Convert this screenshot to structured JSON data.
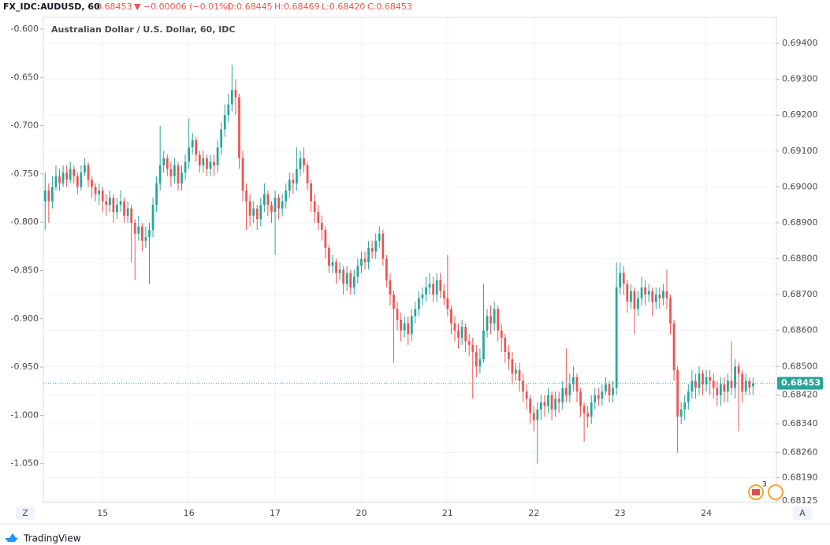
{
  "header": {
    "symbol": "FX_IDC:AUDUSD, 60",
    "price": "0.68453",
    "change": "▼ −0.00006 (−0.01%)",
    "open": "O:0.68445",
    "high": "H:0.68469",
    "low": "L:0.68420",
    "close": "C:0.68453"
  },
  "chart_data": {
    "type": "candlestick",
    "title": "Australian Dollar / U.S. Dollar, 60, IDC",
    "up_color": "#26a69a",
    "down_color": "#ef5350",
    "grid": true,
    "xlim": [
      -0.5,
      203.5
    ],
    "xticks": [
      {
        "value": 16,
        "label": "15"
      },
      {
        "value": 40,
        "label": "16"
      },
      {
        "value": 64,
        "label": "17"
      },
      {
        "value": 88,
        "label": "20"
      },
      {
        "value": 112,
        "label": "21"
      },
      {
        "value": 136,
        "label": "22"
      },
      {
        "value": 160,
        "label": "23"
      },
      {
        "value": 184,
        "label": "24"
      }
    ],
    "ylim": [
      -1.0902,
      -0.5878
    ],
    "yticks": [
      {
        "value": -0.6,
        "label": "-0.600"
      },
      {
        "value": -0.65,
        "label": "-0.650"
      },
      {
        "value": -0.7,
        "label": "-0.700"
      },
      {
        "value": -0.75,
        "label": "-0.750"
      },
      {
        "value": -0.8,
        "label": "-0.800"
      },
      {
        "value": -0.85,
        "label": "-0.850"
      },
      {
        "value": -0.9,
        "label": "-0.900"
      },
      {
        "value": -0.95,
        "label": "-0.950"
      },
      {
        "value": -1.0,
        "label": "-1.000"
      },
      {
        "value": -1.05,
        "label": "-1.050"
      }
    ],
    "y2lim": [
      0.68121,
      0.694725
    ],
    "y2ticks": [
      {
        "value": 0.694,
        "label": "0.69400"
      },
      {
        "value": 0.693,
        "label": "0.69300"
      },
      {
        "value": 0.692,
        "label": "0.69200"
      },
      {
        "value": 0.691,
        "label": "0.69100"
      },
      {
        "value": 0.69,
        "label": "0.69000"
      },
      {
        "value": 0.689,
        "label": "0.68900"
      },
      {
        "value": 0.688,
        "label": "0.68800"
      },
      {
        "value": 0.687,
        "label": "0.68700"
      },
      {
        "value": 0.686,
        "label": "0.68600"
      },
      {
        "value": 0.685,
        "label": "0.68500"
      },
      {
        "value": 0.6842,
        "label": "0.68420"
      },
      {
        "value": 0.6834,
        "label": "0.68340"
      },
      {
        "value": 0.6826,
        "label": "0.68260"
      },
      {
        "value": 0.6819,
        "label": "0.68190"
      },
      {
        "value": 0.68125,
        "label": "0.68125"
      }
    ],
    "last_price": {
      "value": 0.68453,
      "label": "0.68453"
    },
    "axis_buttons": [
      "Z",
      "A"
    ],
    "events_badge": "3",
    "brand": "TradingView",
    "candles": [
      [
        0.6896,
        0.6904,
        0.6888,
        0.6899
      ],
      [
        0.6899,
        0.6901,
        0.689,
        0.6896
      ],
      [
        0.6896,
        0.6903,
        0.6894,
        0.69
      ],
      [
        0.69,
        0.6906,
        0.6899,
        0.6903
      ],
      [
        0.6903,
        0.6905,
        0.6899,
        0.6901
      ],
      [
        0.6901,
        0.6906,
        0.69,
        0.6904
      ],
      [
        0.6904,
        0.6906,
        0.69,
        0.6902
      ],
      [
        0.6902,
        0.6907,
        0.6901,
        0.6905
      ],
      [
        0.6905,
        0.6906,
        0.6901,
        0.6903
      ],
      [
        0.6903,
        0.6904,
        0.6898,
        0.69
      ],
      [
        0.69,
        0.6906,
        0.6899,
        0.6904
      ],
      [
        0.6904,
        0.6908,
        0.6903,
        0.6906
      ],
      [
        0.6906,
        0.6907,
        0.69,
        0.6902
      ],
      [
        0.6902,
        0.6903,
        0.6897,
        0.69
      ],
      [
        0.69,
        0.6901,
        0.6896,
        0.6898
      ],
      [
        0.6898,
        0.6901,
        0.6895,
        0.6899
      ],
      [
        0.6899,
        0.69,
        0.6893,
        0.6896
      ],
      [
        0.6896,
        0.6898,
        0.6892,
        0.6895
      ],
      [
        0.6895,
        0.6899,
        0.6893,
        0.6897
      ],
      [
        0.6897,
        0.6898,
        0.689,
        0.6893
      ],
      [
        0.6893,
        0.6897,
        0.6891,
        0.6895
      ],
      [
        0.6895,
        0.6899,
        0.6893,
        0.6896
      ],
      [
        0.6896,
        0.6897,
        0.689,
        0.6892
      ],
      [
        0.6892,
        0.6896,
        0.689,
        0.6894
      ],
      [
        0.6894,
        0.6895,
        0.6879,
        0.689
      ],
      [
        0.689,
        0.6891,
        0.6874,
        0.6887
      ],
      [
        0.6887,
        0.6892,
        0.6885,
        0.6889
      ],
      [
        0.6889,
        0.689,
        0.6882,
        0.6885
      ],
      [
        0.6885,
        0.6889,
        0.6883,
        0.6886
      ],
      [
        0.6886,
        0.689,
        0.6873,
        0.6888
      ],
      [
        0.6888,
        0.6897,
        0.6886,
        0.6895
      ],
      [
        0.6895,
        0.6903,
        0.6893,
        0.6901
      ],
      [
        0.6901,
        0.6917,
        0.6899,
        0.6906
      ],
      [
        0.6906,
        0.691,
        0.6904,
        0.6908
      ],
      [
        0.6908,
        0.6909,
        0.6903,
        0.6905
      ],
      [
        0.6905,
        0.6907,
        0.69,
        0.6903
      ],
      [
        0.6903,
        0.6908,
        0.6901,
        0.6906
      ],
      [
        0.6906,
        0.6907,
        0.6899,
        0.6901
      ],
      [
        0.6901,
        0.6906,
        0.6899,
        0.6904
      ],
      [
        0.6904,
        0.6909,
        0.6902,
        0.6907
      ],
      [
        0.6907,
        0.6919,
        0.6905,
        0.6911
      ],
      [
        0.6911,
        0.6915,
        0.6909,
        0.6913
      ],
      [
        0.6913,
        0.6914,
        0.6907,
        0.6909
      ],
      [
        0.6909,
        0.691,
        0.6904,
        0.6906
      ],
      [
        0.6906,
        0.691,
        0.6904,
        0.6908
      ],
      [
        0.6908,
        0.6909,
        0.6903,
        0.6905
      ],
      [
        0.6905,
        0.6909,
        0.6903,
        0.6907
      ],
      [
        0.6907,
        0.6909,
        0.6903,
        0.6906
      ],
      [
        0.6906,
        0.6913,
        0.6904,
        0.6911
      ],
      [
        0.6911,
        0.6918,
        0.6909,
        0.6916
      ],
      [
        0.6916,
        0.6923,
        0.6914,
        0.692
      ],
      [
        0.692,
        0.6926,
        0.6918,
        0.6923
      ],
      [
        0.6923,
        0.6934,
        0.6921,
        0.6927
      ],
      [
        0.6927,
        0.693,
        0.692,
        0.6925
      ],
      [
        0.6925,
        0.6926,
        0.6905,
        0.6908
      ],
      [
        0.6908,
        0.691,
        0.6896,
        0.6899
      ],
      [
        0.6899,
        0.6901,
        0.6888,
        0.6896
      ],
      [
        0.6896,
        0.6898,
        0.6889,
        0.6892
      ],
      [
        0.6892,
        0.6896,
        0.689,
        0.6894
      ],
      [
        0.6894,
        0.6895,
        0.6888,
        0.6891
      ],
      [
        0.6891,
        0.6897,
        0.6889,
        0.6895
      ],
      [
        0.6895,
        0.6901,
        0.6893,
        0.6898
      ],
      [
        0.6898,
        0.6899,
        0.6892,
        0.6895
      ],
      [
        0.6895,
        0.6896,
        0.689,
        0.6893
      ],
      [
        0.6893,
        0.6899,
        0.6881,
        0.6897
      ],
      [
        0.6897,
        0.6898,
        0.6891,
        0.6894
      ],
      [
        0.6894,
        0.6898,
        0.6892,
        0.6896
      ],
      [
        0.6896,
        0.6901,
        0.6894,
        0.6899
      ],
      [
        0.6899,
        0.6904,
        0.6897,
        0.6902
      ],
      [
        0.6902,
        0.6904,
        0.6898,
        0.6901
      ],
      [
        0.6901,
        0.6911,
        0.6899,
        0.6905
      ],
      [
        0.6905,
        0.691,
        0.6903,
        0.6908
      ],
      [
        0.6908,
        0.6911,
        0.6904,
        0.6906
      ],
      [
        0.6906,
        0.6907,
        0.6899,
        0.6901
      ],
      [
        0.6901,
        0.6902,
        0.6893,
        0.6896
      ],
      [
        0.6896,
        0.6898,
        0.689,
        0.6893
      ],
      [
        0.6893,
        0.6895,
        0.6888,
        0.689
      ],
      [
        0.689,
        0.6892,
        0.6885,
        0.6888
      ],
      [
        0.6888,
        0.6889,
        0.688,
        0.6883
      ],
      [
        0.6883,
        0.6884,
        0.6876,
        0.6878
      ],
      [
        0.6878,
        0.6881,
        0.6876,
        0.6879
      ],
      [
        0.6879,
        0.688,
        0.6873,
        0.6876
      ],
      [
        0.6876,
        0.6879,
        0.6874,
        0.6877
      ],
      [
        0.6877,
        0.6878,
        0.687,
        0.6873
      ],
      [
        0.6873,
        0.6878,
        0.6871,
        0.6876
      ],
      [
        0.6876,
        0.6877,
        0.687,
        0.6872
      ],
      [
        0.6872,
        0.6877,
        0.687,
        0.6875
      ],
      [
        0.6875,
        0.688,
        0.6873,
        0.6878
      ],
      [
        0.6878,
        0.6882,
        0.6876,
        0.688
      ],
      [
        0.688,
        0.6882,
        0.6877,
        0.6879
      ],
      [
        0.6879,
        0.6885,
        0.6877,
        0.6883
      ],
      [
        0.6883,
        0.6885,
        0.688,
        0.6882
      ],
      [
        0.6882,
        0.6887,
        0.688,
        0.6885
      ],
      [
        0.6885,
        0.6889,
        0.6883,
        0.6887
      ],
      [
        0.6887,
        0.6888,
        0.6878,
        0.688
      ],
      [
        0.688,
        0.6881,
        0.6872,
        0.6874
      ],
      [
        0.6874,
        0.6876,
        0.6867,
        0.687
      ],
      [
        0.687,
        0.6871,
        0.6851,
        0.6866
      ],
      [
        0.6866,
        0.6868,
        0.686,
        0.6863
      ],
      [
        0.6863,
        0.6865,
        0.6857,
        0.686
      ],
      [
        0.686,
        0.6864,
        0.6858,
        0.6862
      ],
      [
        0.6862,
        0.6864,
        0.6856,
        0.6859
      ],
      [
        0.6859,
        0.6866,
        0.6857,
        0.6864
      ],
      [
        0.6864,
        0.6868,
        0.6862,
        0.6866
      ],
      [
        0.6866,
        0.6871,
        0.6864,
        0.6869
      ],
      [
        0.6869,
        0.6872,
        0.6867,
        0.687
      ],
      [
        0.687,
        0.6875,
        0.6868,
        0.6872
      ],
      [
        0.6872,
        0.6876,
        0.687,
        0.6873
      ],
      [
        0.6873,
        0.6875,
        0.6868,
        0.687
      ],
      [
        0.687,
        0.6876,
        0.6868,
        0.6874
      ],
      [
        0.6874,
        0.6876,
        0.6869,
        0.6871
      ],
      [
        0.6871,
        0.6873,
        0.6867,
        0.6869
      ],
      [
        0.6869,
        0.6881,
        0.6864,
        0.6866
      ],
      [
        0.6866,
        0.6867,
        0.6859,
        0.6862
      ],
      [
        0.6862,
        0.6864,
        0.6857,
        0.686
      ],
      [
        0.686,
        0.6862,
        0.6855,
        0.6858
      ],
      [
        0.6858,
        0.6863,
        0.6856,
        0.6861
      ],
      [
        0.6861,
        0.6862,
        0.6854,
        0.6857
      ],
      [
        0.6857,
        0.6859,
        0.6853,
        0.6856
      ],
      [
        0.6856,
        0.6858,
        0.6841,
        0.6854
      ],
      [
        0.6854,
        0.6856,
        0.6847,
        0.685
      ],
      [
        0.685,
        0.6855,
        0.6848,
        0.6852
      ],
      [
        0.6852,
        0.6873,
        0.6851,
        0.686
      ],
      [
        0.686,
        0.6866,
        0.6858,
        0.6864
      ],
      [
        0.6864,
        0.6867,
        0.6859,
        0.6862
      ],
      [
        0.6862,
        0.6868,
        0.686,
        0.6866
      ],
      [
        0.6866,
        0.6867,
        0.6857,
        0.686
      ],
      [
        0.686,
        0.6862,
        0.6854,
        0.6858
      ],
      [
        0.6858,
        0.6859,
        0.6851,
        0.6854
      ],
      [
        0.6854,
        0.6856,
        0.6849,
        0.6852
      ],
      [
        0.6852,
        0.6854,
        0.6845,
        0.6848
      ],
      [
        0.6848,
        0.6851,
        0.6846,
        0.6849
      ],
      [
        0.6849,
        0.6851,
        0.6843,
        0.6846
      ],
      [
        0.6846,
        0.6848,
        0.684,
        0.6843
      ],
      [
        0.6843,
        0.6845,
        0.6838,
        0.6841
      ],
      [
        0.6841,
        0.6842,
        0.6834,
        0.6837
      ],
      [
        0.6837,
        0.6839,
        0.6832,
        0.6835
      ],
      [
        0.6835,
        0.684,
        0.6823,
        0.6838
      ],
      [
        0.6838,
        0.6842,
        0.6835,
        0.684
      ],
      [
        0.684,
        0.6842,
        0.6836,
        0.6839
      ],
      [
        0.6839,
        0.6844,
        0.6837,
        0.6842
      ],
      [
        0.6842,
        0.6843,
        0.6835,
        0.6838
      ],
      [
        0.6838,
        0.6843,
        0.6836,
        0.6841
      ],
      [
        0.6841,
        0.6843,
        0.6837,
        0.684
      ],
      [
        0.684,
        0.6846,
        0.6838,
        0.6844
      ],
      [
        0.6844,
        0.6855,
        0.684,
        0.6842
      ],
      [
        0.6842,
        0.6848,
        0.684,
        0.6845
      ],
      [
        0.6845,
        0.685,
        0.6843,
        0.6847
      ],
      [
        0.6847,
        0.6848,
        0.684,
        0.6843
      ],
      [
        0.6843,
        0.6844,
        0.6836,
        0.6839
      ],
      [
        0.6839,
        0.684,
        0.6829,
        0.6837
      ],
      [
        0.6837,
        0.6839,
        0.6833,
        0.6836
      ],
      [
        0.6836,
        0.6842,
        0.6834,
        0.684
      ],
      [
        0.684,
        0.6844,
        0.6838,
        0.6842
      ],
      [
        0.6842,
        0.6844,
        0.6839,
        0.6841
      ],
      [
        0.6841,
        0.6845,
        0.6839,
        0.6843
      ],
      [
        0.6843,
        0.6847,
        0.6842,
        0.6845
      ],
      [
        0.6845,
        0.6846,
        0.684,
        0.6842
      ],
      [
        0.6842,
        0.6846,
        0.684,
        0.6844
      ],
      [
        0.6844,
        0.6879,
        0.6842,
        0.6872
      ],
      [
        0.6872,
        0.6879,
        0.687,
        0.6876
      ],
      [
        0.6876,
        0.6878,
        0.687,
        0.6873
      ],
      [
        0.6873,
        0.6874,
        0.6865,
        0.6868
      ],
      [
        0.6868,
        0.6873,
        0.6866,
        0.6871
      ],
      [
        0.6871,
        0.6872,
        0.6859,
        0.6866
      ],
      [
        0.6866,
        0.6871,
        0.6864,
        0.6869
      ],
      [
        0.6869,
        0.6875,
        0.6867,
        0.6872
      ],
      [
        0.6872,
        0.6874,
        0.6867,
        0.687
      ],
      [
        0.687,
        0.6873,
        0.6868,
        0.6871
      ],
      [
        0.6871,
        0.6872,
        0.6864,
        0.6868
      ],
      [
        0.6868,
        0.6872,
        0.6866,
        0.687
      ],
      [
        0.687,
        0.6872,
        0.6866,
        0.6869
      ],
      [
        0.6869,
        0.6873,
        0.6867,
        0.6871
      ],
      [
        0.6871,
        0.6877,
        0.6866,
        0.6869
      ],
      [
        0.6869,
        0.687,
        0.6859,
        0.6862
      ],
      [
        0.6862,
        0.6863,
        0.6846,
        0.6849
      ],
      [
        0.6849,
        0.685,
        0.6826,
        0.6836
      ],
      [
        0.6836,
        0.684,
        0.6834,
        0.6838
      ],
      [
        0.6838,
        0.6842,
        0.6835,
        0.684
      ],
      [
        0.684,
        0.6845,
        0.6838,
        0.6843
      ],
      [
        0.6843,
        0.6849,
        0.6841,
        0.6846
      ],
      [
        0.6846,
        0.6848,
        0.6841,
        0.6844
      ],
      [
        0.6844,
        0.685,
        0.6842,
        0.6848
      ],
      [
        0.6848,
        0.6849,
        0.6842,
        0.6845
      ],
      [
        0.6845,
        0.6849,
        0.6843,
        0.6847
      ],
      [
        0.6847,
        0.6849,
        0.6842,
        0.6846
      ],
      [
        0.6846,
        0.6848,
        0.6841,
        0.6844
      ],
      [
        0.6844,
        0.6846,
        0.6839,
        0.6842
      ],
      [
        0.6842,
        0.6847,
        0.6839,
        0.6845
      ],
      [
        0.6845,
        0.6847,
        0.684,
        0.6843
      ],
      [
        0.6843,
        0.6848,
        0.684,
        0.6846
      ],
      [
        0.6846,
        0.6857,
        0.6842,
        0.6844
      ],
      [
        0.6844,
        0.6852,
        0.6841,
        0.685
      ],
      [
        0.685,
        0.6851,
        0.6832,
        0.6848
      ],
      [
        0.6848,
        0.6849,
        0.684,
        0.6843
      ],
      [
        0.6843,
        0.6848,
        0.6842,
        0.6846
      ],
      [
        0.6846,
        0.6847,
        0.6842,
        0.6844
      ],
      [
        0.68445,
        0.68469,
        0.6842,
        0.68453
      ]
    ]
  }
}
